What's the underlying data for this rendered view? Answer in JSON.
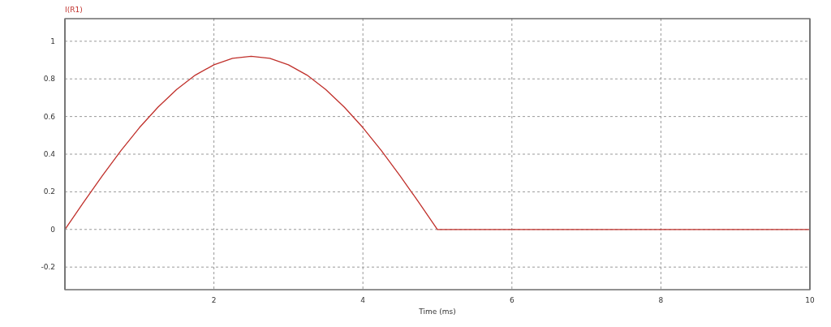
{
  "chart_data": {
    "type": "line",
    "ylabel": "I(R1)",
    "xlabel": "Time (ms)",
    "x": [
      0,
      0.25,
      0.5,
      0.75,
      1,
      1.25,
      1.5,
      1.75,
      2,
      2.25,
      2.5,
      2.75,
      3,
      3.25,
      3.5,
      3.75,
      4,
      4.25,
      4.5,
      4.75,
      5,
      10
    ],
    "series": [
      {
        "color": "#c0302b",
        "values": [
          0,
          0.144,
          0.284,
          0.418,
          0.541,
          0.65,
          0.744,
          0.82,
          0.875,
          0.909,
          0.92,
          0.909,
          0.875,
          0.82,
          0.744,
          0.65,
          0.541,
          0.418,
          0.284,
          0.144,
          0,
          0
        ]
      }
    ],
    "xlim": [
      0,
      10
    ],
    "xticks": [
      2,
      4,
      6,
      8,
      10
    ],
    "ylim": [
      -0.32,
      1.12
    ],
    "yticks": [
      -0.2,
      0,
      0.2,
      0.4,
      0.6,
      0.8,
      1
    ],
    "grid": true,
    "line_style": "solid",
    "marker": "none"
  }
}
